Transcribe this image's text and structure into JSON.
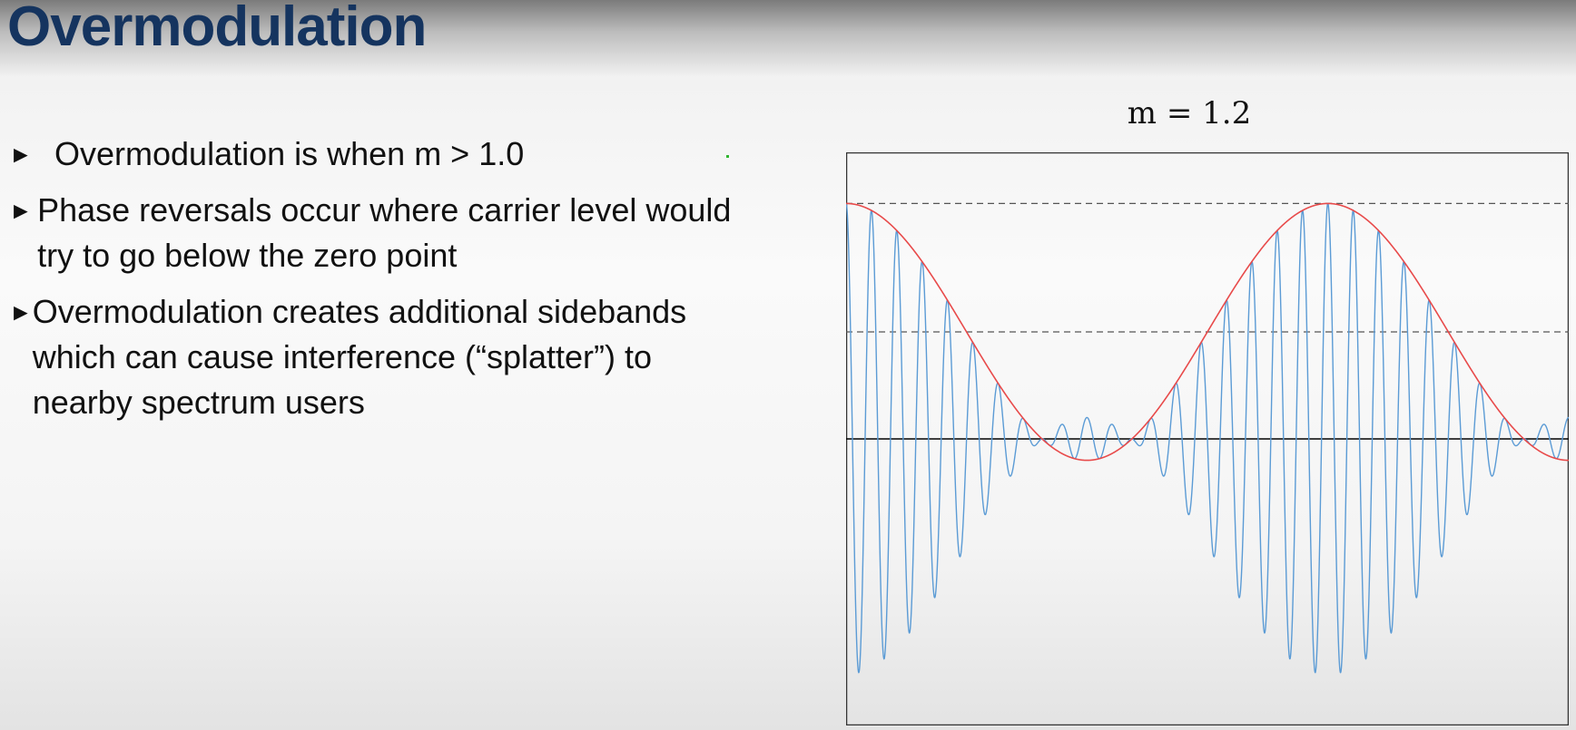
{
  "slide": {
    "title": "Overmodulation",
    "bullets": [
      {
        "marker": "►",
        "text": "Overmodulation is when m > 1.0"
      },
      {
        "marker": "►",
        "text": "Phase reversals occur where carrier level would try to go below the zero point"
      },
      {
        "marker": "►",
        "text": "Overmodulation creates additional sidebands which can cause interference (“splatter”) to nearby spectrum users"
      }
    ]
  },
  "graph": {
    "title": "m = 1.2",
    "m": 1.2,
    "envelope_cycles": 1.5,
    "carrier_cycles_per_envelope": 19,
    "colors": {
      "carrier": "#5b9bd5",
      "envelope": "#e84a4a",
      "axis": "#000000",
      "reference": "#555555",
      "frame": "#333333"
    }
  }
}
